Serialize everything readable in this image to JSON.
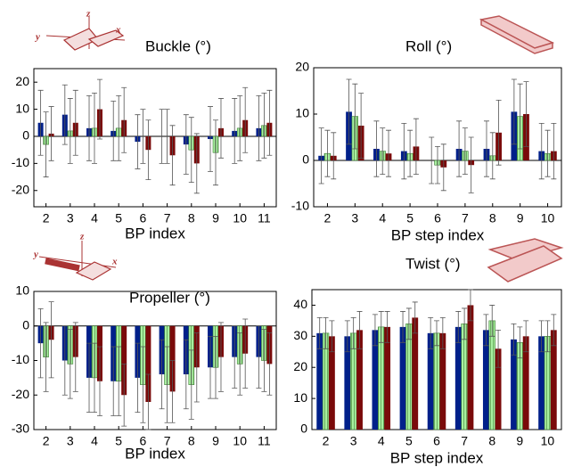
{
  "chart_data": [
    {
      "type": "bar",
      "title": "Buckle (°)",
      "x_label": "BP index",
      "annotations": [
        "y",
        "z",
        "x"
      ],
      "categories": [
        "2",
        "3",
        "4",
        "5",
        "6",
        "7",
        "8",
        "9",
        "10",
        "11"
      ],
      "series": [
        {
          "color": "#00208a",
          "values": [
            5,
            8,
            3,
            2,
            -2,
            0,
            -3,
            -1,
            2,
            3
          ],
          "errors": [
            12,
            11,
            12,
            11,
            10,
            10,
            11,
            12,
            12,
            12
          ]
        },
        {
          "color": "#a8f0a0",
          "values": [
            -3,
            2,
            3,
            3,
            0,
            0,
            -5,
            -6,
            3,
            4
          ],
          "errors": [
            12,
            12,
            13,
            12,
            10,
            10,
            12,
            12,
            12,
            12
          ]
        },
        {
          "color": "#7a0a0a",
          "values": [
            1,
            5,
            10,
            6,
            -5,
            -7,
            -10,
            3,
            6,
            5
          ],
          "errors": [
            10,
            12,
            11,
            12,
            11,
            11,
            11,
            11,
            12,
            12
          ]
        }
      ],
      "ylim": [
        -26,
        25
      ],
      "yticks": [
        -20,
        -10,
        0,
        10,
        20
      ]
    },
    {
      "type": "bar",
      "title": "Roll (°)",
      "x_label": "BP step index",
      "categories": [
        "2",
        "3",
        "4",
        "5",
        "6",
        "7",
        "8",
        "9",
        "10"
      ],
      "series": [
        {
          "color": "#00208a",
          "values": [
            1,
            10.5,
            2.5,
            2,
            0,
            2.5,
            2.5,
            10.5,
            2
          ],
          "errors": [
            6,
            7,
            6,
            6,
            5,
            6,
            6,
            7,
            6
          ]
        },
        {
          "color": "#a8f0a0",
          "values": [
            1.5,
            9.5,
            2,
            1.5,
            -1,
            2,
            1,
            9.5,
            1.5
          ],
          "errors": [
            5,
            7,
            5,
            5,
            4,
            5,
            5,
            7,
            5
          ]
        },
        {
          "color": "#7a0a0a",
          "values": [
            1,
            7.5,
            1.5,
            3,
            -1.5,
            -1,
            6,
            10,
            2
          ],
          "errors": [
            5,
            7,
            5,
            6,
            5,
            6,
            7,
            7,
            6
          ]
        }
      ],
      "ylim": [
        -10,
        20
      ],
      "yticks": [
        -10,
        0,
        10,
        20
      ]
    },
    {
      "type": "bar",
      "title": "Propeller (°)",
      "x_label": "BP index",
      "annotations": [
        "y",
        "z",
        "x"
      ],
      "categories": [
        "2",
        "3",
        "4",
        "5",
        "6",
        "7",
        "8",
        "9",
        "10",
        "11"
      ],
      "series": [
        {
          "color": "#00208a",
          "values": [
            -5,
            -10,
            -15,
            -16,
            -15,
            -14,
            -14,
            -12,
            -9,
            -9
          ],
          "errors": [
            10,
            10,
            10,
            10,
            10,
            10,
            10,
            9,
            9,
            9
          ]
        },
        {
          "color": "#a8f0a0",
          "values": [
            -9,
            -11,
            -15,
            -16,
            -17,
            -17,
            -17,
            -12,
            -11,
            -10
          ],
          "errors": [
            10,
            10,
            10,
            10,
            11,
            11,
            10,
            9,
            9,
            9
          ]
        },
        {
          "color": "#7a0a0a",
          "values": [
            -4,
            -9,
            -16,
            -20,
            -22,
            -19,
            -12,
            -9,
            -8,
            -11
          ],
          "errors": [
            11,
            10,
            10,
            9,
            8,
            9,
            10,
            10,
            10,
            9
          ]
        }
      ],
      "ylim": [
        -30,
        10
      ],
      "yticks": [
        -30,
        -20,
        -10,
        0,
        10
      ]
    },
    {
      "type": "bar",
      "title": "Twist (°)",
      "x_label": "BP step index",
      "categories": [
        "2",
        "3",
        "4",
        "5",
        "6",
        "7",
        "8",
        "9",
        "10"
      ],
      "series": [
        {
          "color": "#00208a",
          "values": [
            31,
            30,
            32,
            33,
            31,
            33,
            32,
            29,
            30
          ],
          "errors": [
            5,
            5,
            5,
            5,
            5,
            5,
            5,
            5,
            5
          ]
        },
        {
          "color": "#a8f0a0",
          "values": [
            31,
            31,
            33,
            34,
            31,
            34,
            35,
            28,
            30
          ],
          "errors": [
            5,
            5,
            5,
            5,
            4,
            5,
            5,
            5,
            5
          ]
        },
        {
          "color": "#7a0a0a",
          "values": [
            30,
            32,
            33,
            36,
            31,
            40,
            26,
            30,
            32
          ],
          "errors": [
            5,
            6,
            5,
            5,
            5,
            5,
            6,
            5,
            5
          ]
        }
      ],
      "ylim": [
        0,
        45
      ],
      "yticks": [
        0,
        10,
        20,
        30,
        40
      ]
    }
  ]
}
